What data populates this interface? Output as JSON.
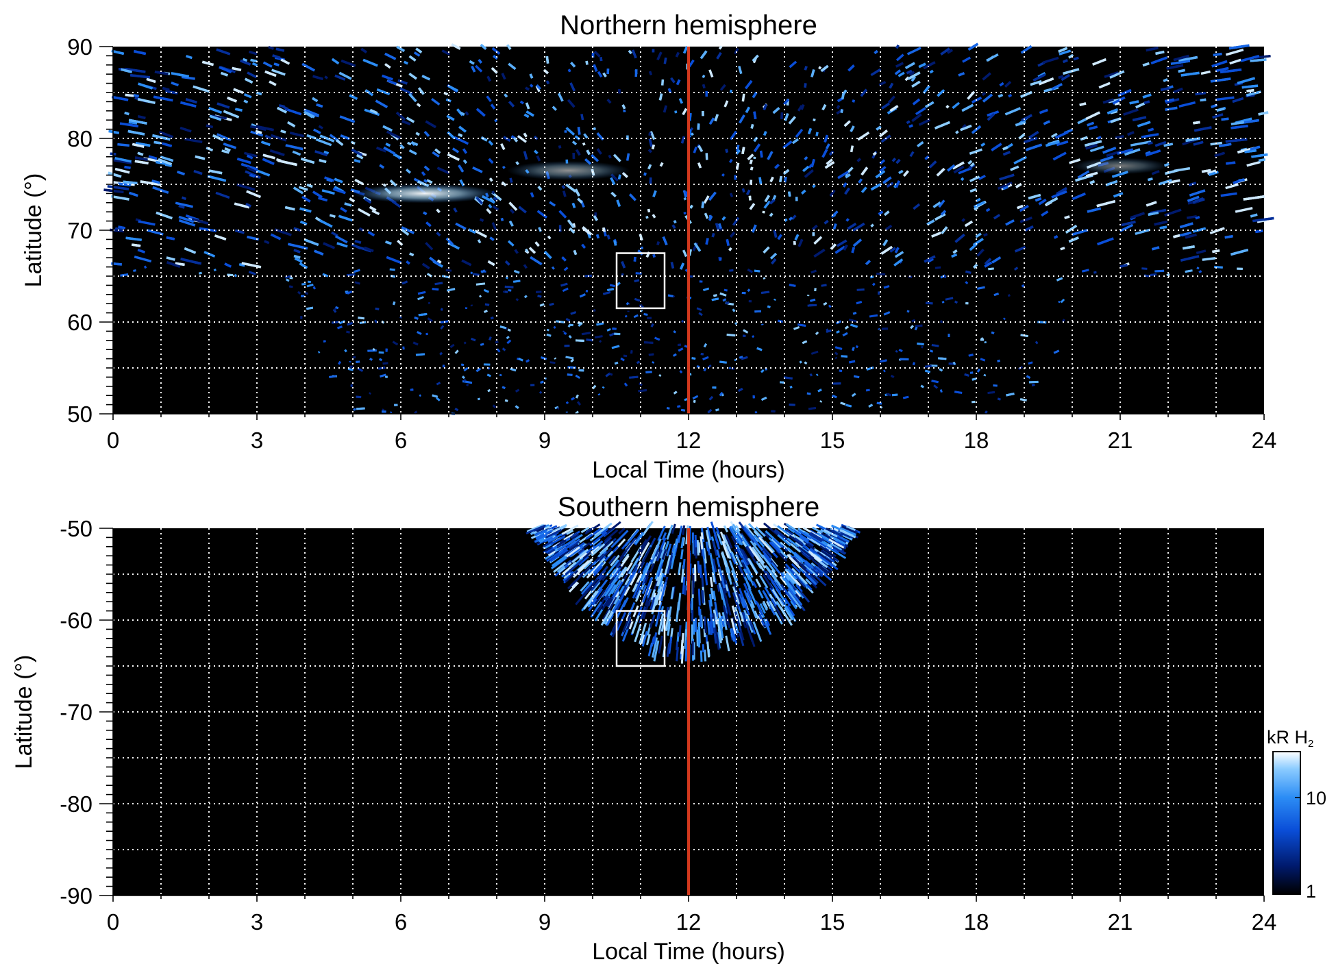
{
  "chart_data": [
    {
      "type": "heatmap",
      "title": "Northern hemisphere",
      "xlabel": "Local Time (hours)",
      "ylabel": "Latitude (°)",
      "xlim": [
        0,
        24
      ],
      "ylim": [
        50,
        90
      ],
      "xticks": [
        "0",
        "3",
        "6",
        "9",
        "12",
        "15",
        "18",
        "21",
        "24"
      ],
      "yticks": [
        "50",
        "60",
        "70",
        "80",
        "90"
      ],
      "grid": true,
      "grid_x_step_hours": 1,
      "grid_y_step_deg": 5,
      "noon_line_x": 12,
      "noon_line_color": "#d2381d",
      "highlight_box": {
        "x": [
          10.5,
          11.5
        ],
        "y": [
          61.5,
          67.5
        ]
      },
      "bright_arc": {
        "x": [
          5,
          8
        ],
        "y": [
          74,
          74
        ]
      },
      "coverage_note": "observed emission above 65° for all local times and down to 50° between ~5 and ~19 h"
    },
    {
      "type": "heatmap",
      "title": "Southern hemisphere",
      "xlabel": "Local Time (hours)",
      "ylabel": "Latitude (°)",
      "xlim": [
        0,
        24
      ],
      "ylim": [
        -90,
        -50
      ],
      "xticks": [
        "0",
        "3",
        "6",
        "9",
        "12",
        "15",
        "18",
        "21",
        "24"
      ],
      "yticks": [
        "-50",
        "-60",
        "-70",
        "-80",
        "-90"
      ],
      "grid": true,
      "grid_x_step_hours": 1,
      "grid_y_step_deg": 5,
      "noon_line_x": 12,
      "noon_line_color": "#d2381d",
      "highlight_box": {
        "x": [
          10.5,
          11.5
        ],
        "y": [
          -65,
          -59
        ]
      },
      "coverage_note": "observed emission only between ~8.8 and ~15.4 h, from -50° down to about -64°"
    }
  ],
  "colorbar": {
    "unit_prefix": "kR H",
    "unit_subscript": "2",
    "scale": "log",
    "range": [
      1,
      30
    ],
    "tick_labels": [
      "1",
      "10"
    ],
    "colors": [
      "#000000",
      "#001a6e",
      "#0a4ed8",
      "#2c8df5",
      "#8cccff",
      "#ffffff"
    ]
  }
}
